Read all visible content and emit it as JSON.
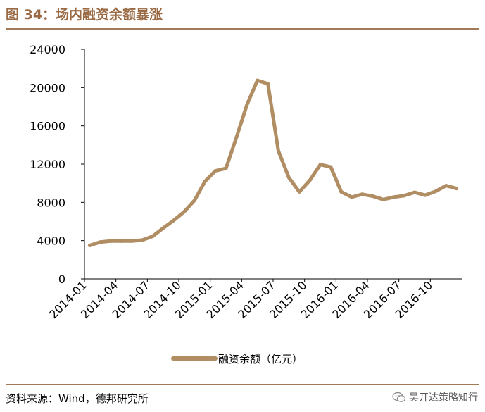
{
  "figure": {
    "title": "图 34：场内融资余额暴涨",
    "source": "资料来源：Wind，德邦研究所",
    "watermark": "吴开达策略知行"
  },
  "colors": {
    "line": "#b08d62",
    "rule": "#a27a55",
    "title": "#9a6a45"
  },
  "chart_data": {
    "type": "line",
    "x_tick_labels": [
      "2014-01",
      "2014-04",
      "2014-07",
      "2014-10",
      "2015-01",
      "2015-04",
      "2015-07",
      "2015-10",
      "2016-01",
      "2016-04",
      "2016-07",
      "2016-10"
    ],
    "y_tick_labels": [
      "0",
      "4000",
      "8000",
      "12000",
      "16000",
      "20000",
      "24000"
    ],
    "ylim": [
      0,
      24000
    ],
    "legend_position": "bottom",
    "grid": false,
    "series": [
      {
        "name": "融资余额（亿元）",
        "x": [
          "2014-01",
          "2014-02",
          "2014-03",
          "2014-04",
          "2014-05",
          "2014-06",
          "2014-07",
          "2014-08",
          "2014-09",
          "2014-10",
          "2014-11",
          "2014-12",
          "2015-01",
          "2015-02",
          "2015-03",
          "2015-04",
          "2015-05",
          "2015-06",
          "2015-07",
          "2015-08",
          "2015-09",
          "2015-10",
          "2015-11",
          "2015-12",
          "2016-01",
          "2016-02",
          "2016-03",
          "2016-04",
          "2016-05",
          "2016-06",
          "2016-07",
          "2016-08",
          "2016-09",
          "2016-10",
          "2016-11",
          "2016-12"
        ],
        "values": [
          3500,
          3850,
          3950,
          3950,
          3950,
          4050,
          4450,
          5300,
          6100,
          7000,
          8200,
          10200,
          11300,
          11550,
          14800,
          18200,
          20750,
          20400,
          13400,
          10600,
          9100,
          10300,
          11950,
          11700,
          9100,
          8550,
          8850,
          8650,
          8300,
          8550,
          8700,
          9050,
          8750,
          9150,
          9750,
          9450
        ]
      }
    ]
  }
}
